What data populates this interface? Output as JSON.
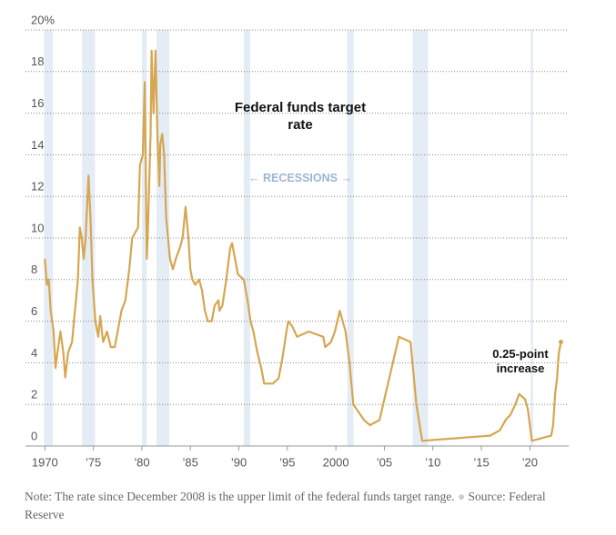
{
  "chart_data": {
    "type": "line",
    "title": "Federal funds target rate",
    "recession_label": "← RECESSIONS →",
    "annotation": "0.25-point increase",
    "note": "Note: The rate since December 2008 is the upper limit of the federal funds target range.",
    "source": "Source: Federal Reserve",
    "color": "#d6a651",
    "recession_color": "#e4ecf6",
    "grid": true,
    "xlim": [
      1968,
      2024
    ],
    "ylim": [
      0,
      20
    ],
    "yticks": [
      0,
      2,
      4,
      6,
      8,
      10,
      12,
      14,
      16,
      18,
      {
        "value": 20,
        "label": "20%"
      }
    ],
    "xticks": [
      1970,
      {
        "value": 1975,
        "label": "’75"
      },
      {
        "value": 1980,
        "label": "’80"
      },
      {
        "value": 1985,
        "label": "’85"
      },
      {
        "value": 1990,
        "label": "’90"
      },
      {
        "value": 1995,
        "label": "’95"
      },
      2000,
      {
        "value": 2005,
        "label": "’05"
      },
      {
        "value": 2010,
        "label": "’10"
      },
      {
        "value": 2015,
        "label": "’15"
      },
      {
        "value": 2020,
        "label": "’20"
      }
    ],
    "recessions": [
      [
        1969.92,
        1970.83
      ],
      [
        1973.83,
        1975.17
      ],
      [
        1980.0,
        1980.5
      ],
      [
        1981.5,
        1982.83
      ],
      [
        1990.5,
        1991.17
      ],
      [
        2001.17,
        2001.83
      ],
      [
        2007.92,
        2009.5
      ],
      [
        2020.08,
        2020.33
      ]
    ],
    "x": [
      1970.0,
      1970.2,
      1970.4,
      1970.6,
      1970.9,
      1971.1,
      1971.3,
      1971.6,
      1971.9,
      1972.1,
      1972.4,
      1972.8,
      1973.0,
      1973.4,
      1973.6,
      1973.8,
      1974.0,
      1974.2,
      1974.5,
      1974.7,
      1974.9,
      1975.2,
      1975.5,
      1975.7,
      1976.0,
      1976.4,
      1976.8,
      1977.2,
      1977.5,
      1977.9,
      1978.3,
      1978.7,
      1979.0,
      1979.6,
      1979.8,
      1980.1,
      1980.3,
      1980.5,
      1980.6,
      1980.9,
      1981.0,
      1981.2,
      1981.4,
      1981.6,
      1981.8,
      1981.9,
      1982.1,
      1982.3,
      1982.5,
      1982.7,
      1982.9,
      1983.2,
      1983.5,
      1983.9,
      1984.2,
      1984.5,
      1984.8,
      1985.0,
      1985.2,
      1985.5,
      1985.9,
      1986.2,
      1986.5,
      1986.8,
      1987.2,
      1987.5,
      1987.9,
      1988.0,
      1988.3,
      1988.7,
      1989.1,
      1989.3,
      1989.6,
      1989.9,
      1990.5,
      1990.9,
      1991.2,
      1991.5,
      1991.9,
      1992.3,
      1992.6,
      1993.5,
      1994.1,
      1994.5,
      1994.9,
      1995.1,
      1995.5,
      1996.0,
      1997.2,
      1998.7,
      1998.9,
      1999.5,
      1999.9,
      2000.4,
      2001.0,
      2001.4,
      2001.8,
      2002.9,
      2003.5,
      2004.5,
      2005.0,
      2006.5,
      2007.7,
      2008.0,
      2008.3,
      2008.9,
      2015.9,
      2016.9,
      2017.5,
      2018.0,
      2018.5,
      2018.9,
      2019.5,
      2019.8,
      2020.2,
      2022.2,
      2022.4,
      2022.6,
      2022.8,
      2022.9,
      2023.0,
      2023.1,
      2023.2
    ],
    "values": [
      9,
      7.75,
      8,
      6.5,
      5.5,
      3.75,
      4.5,
      5.5,
      4.5,
      3.3,
      4.5,
      5,
      6,
      8,
      10.5,
      10,
      9,
      10,
      13,
      11,
      8,
      6,
      5.25,
      6.25,
      5,
      5.5,
      4.75,
      4.75,
      5.5,
      6.5,
      7,
      8.5,
      10,
      10.5,
      13.5,
      14,
      17.5,
      9,
      10,
      15,
      19,
      16,
      19,
      15,
      12.5,
      14.5,
      15,
      14,
      11,
      10,
      9,
      8.5,
      9,
      9.5,
      10,
      11.5,
      10,
      8.5,
      8,
      7.75,
      8,
      7.5,
      6.5,
      6,
      6,
      6.75,
      7,
      6.5,
      6.75,
      8,
      9.5,
      9.75,
      9,
      8.25,
      8,
      7,
      6,
      5.5,
      4.5,
      3.75,
      3,
      3,
      3.25,
      4.25,
      5.5,
      6,
      5.75,
      5.25,
      5.5,
      5.25,
      4.75,
      5,
      5.5,
      6.5,
      5.5,
      4,
      2,
      1.25,
      1,
      1.25,
      2.25,
      5.25,
      5,
      3.5,
      2,
      0.25,
      0.5,
      0.75,
      1.25,
      1.5,
      2,
      2.5,
      2.25,
      1.75,
      0.25,
      0.5,
      1,
      2.5,
      3.25,
      4,
      4.5,
      4.75,
      5
    ]
  }
}
